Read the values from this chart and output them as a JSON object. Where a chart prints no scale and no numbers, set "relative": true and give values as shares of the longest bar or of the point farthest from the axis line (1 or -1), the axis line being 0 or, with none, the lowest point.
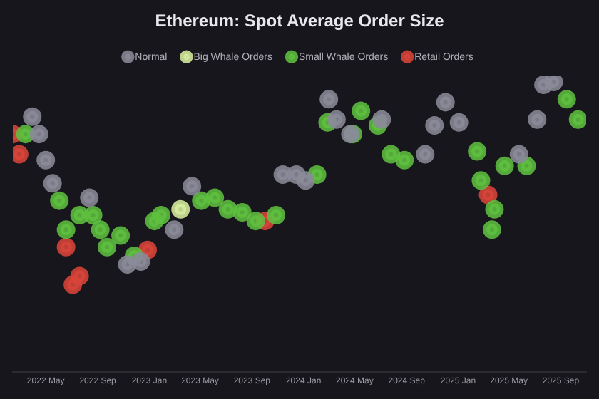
{
  "chart_data": {
    "type": "scatter",
    "title": "Ethereum: Spot Average Order Size",
    "relative": true,
    "legend": "top",
    "marker": "circle",
    "grid": false,
    "tick_labels": "x",
    "xlim": [
      "2022-02-12",
      "2025-10-31"
    ],
    "xticks": [
      {
        "value": "2022-05",
        "label": "2022 May"
      },
      {
        "value": "2022-09",
        "label": "2022 Sep"
      },
      {
        "value": "2023-01",
        "label": "2023 Jan"
      },
      {
        "value": "2023-05",
        "label": "2023 May"
      },
      {
        "value": "2023-09",
        "label": "2023 Sep"
      },
      {
        "value": "2024-01",
        "label": "2024 Jan"
      },
      {
        "value": "2024-05",
        "label": "2024 May"
      },
      {
        "value": "2024-09",
        "label": "2024 Sep"
      },
      {
        "value": "2025-01",
        "label": "2025 Jan"
      },
      {
        "value": "2025-05",
        "label": "2025 May"
      },
      {
        "value": "2025-09",
        "label": "2025 Sep"
      }
    ],
    "series": [
      {
        "name": "Normal",
        "color": "#8a8a9a",
        "x": [
          "2022-03-30",
          "2022-04-15",
          "2022-05-01",
          "2022-05-17",
          "2022-08-12",
          "2022-11-10",
          "2022-12-12",
          "2023-03-01",
          "2023-04-12",
          "2023-11-13",
          "2023-12-15",
          "2024-01-06",
          "2024-03-01",
          "2024-03-19",
          "2024-04-21",
          "2024-07-04",
          "2024-10-15",
          "2024-11-06",
          "2024-12-02",
          "2025-01-03",
          "2025-05-25",
          "2025-07-07",
          "2025-07-22",
          "2025-08-15"
        ],
        "values": [
          0.88,
          0.82,
          0.73,
          0.65,
          0.6,
          0.37,
          0.38,
          0.49,
          0.64,
          0.68,
          0.68,
          0.66,
          0.94,
          0.87,
          0.82,
          0.87,
          0.75,
          0.85,
          0.93,
          0.86,
          0.75,
          0.87,
          0.99,
          1
        ]
      },
      {
        "name": "Big Whale Orders",
        "color": "#d8efa0",
        "x": [
          "2023-03-16"
        ],
        "values": [
          0.56
        ]
      },
      {
        "name": "Small Whale Orders",
        "color": "#5fbf3f",
        "x": [
          "2022-03-14",
          "2022-06-02",
          "2022-06-18",
          "2022-07-20",
          "2022-08-21",
          "2022-09-07",
          "2022-09-23",
          "2022-10-25",
          "2022-11-26",
          "2023-01-13",
          "2023-01-29",
          "2023-05-04",
          "2023-06-05",
          "2023-07-06",
          "2023-08-09",
          "2023-09-10",
          "2023-10-28",
          "2024-02-02",
          "2024-02-27",
          "2024-04-27",
          "2024-05-16",
          "2024-06-25",
          "2024-07-26",
          "2024-08-27",
          "2025-02-15",
          "2025-02-24",
          "2025-03-22",
          "2025-03-28",
          "2025-04-21",
          "2025-06-12",
          "2025-09-15",
          "2025-10-12"
        ],
        "values": [
          0.82,
          0.59,
          0.49,
          0.54,
          0.54,
          0.49,
          0.43,
          0.47,
          0.4,
          0.52,
          0.54,
          0.59,
          0.6,
          0.56,
          0.55,
          0.52,
          0.54,
          0.68,
          0.86,
          0.82,
          0.9,
          0.85,
          0.75,
          0.73,
          0.76,
          0.66,
          0.49,
          0.56,
          0.71,
          0.71,
          0.94,
          0.87
        ]
      },
      {
        "name": "Retail Orders",
        "color": "#d9443a",
        "x": [
          "2022-02-12",
          "2022-02-27",
          "2022-06-18",
          "2022-07-04",
          "2022-07-20",
          "2022-12-28",
          "2023-10-02",
          "2025-03-13"
        ],
        "values": [
          0.82,
          0.75,
          0.43,
          0.3,
          0.33,
          0.42,
          0.52,
          0.61
        ]
      }
    ]
  }
}
